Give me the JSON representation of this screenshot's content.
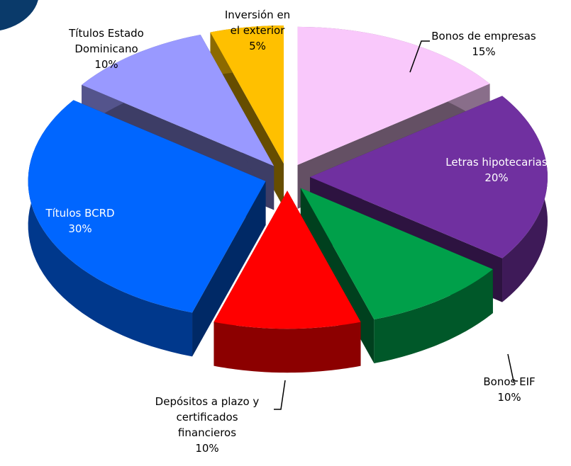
{
  "chart_data": {
    "type": "pie",
    "categories": [
      "Bonos de empresas",
      "Letras hipotecarias",
      "Bonos EIF",
      "Depósitos a plazo y certificados financieros",
      "Títulos BCRD",
      "Títulos Estado Dominicano",
      "Inversión en el exterior"
    ],
    "values": [
      15,
      20,
      10,
      10,
      30,
      10,
      5
    ],
    "value_labels": [
      "15%",
      "20%",
      "10%",
      "10%",
      "30%",
      "10%",
      "5%"
    ],
    "colors": [
      "#f9c8fb",
      "#7030a0",
      "#00a04a",
      "#ff0000",
      "#0066ff",
      "#9999ff",
      "#ffc000"
    ]
  }
}
